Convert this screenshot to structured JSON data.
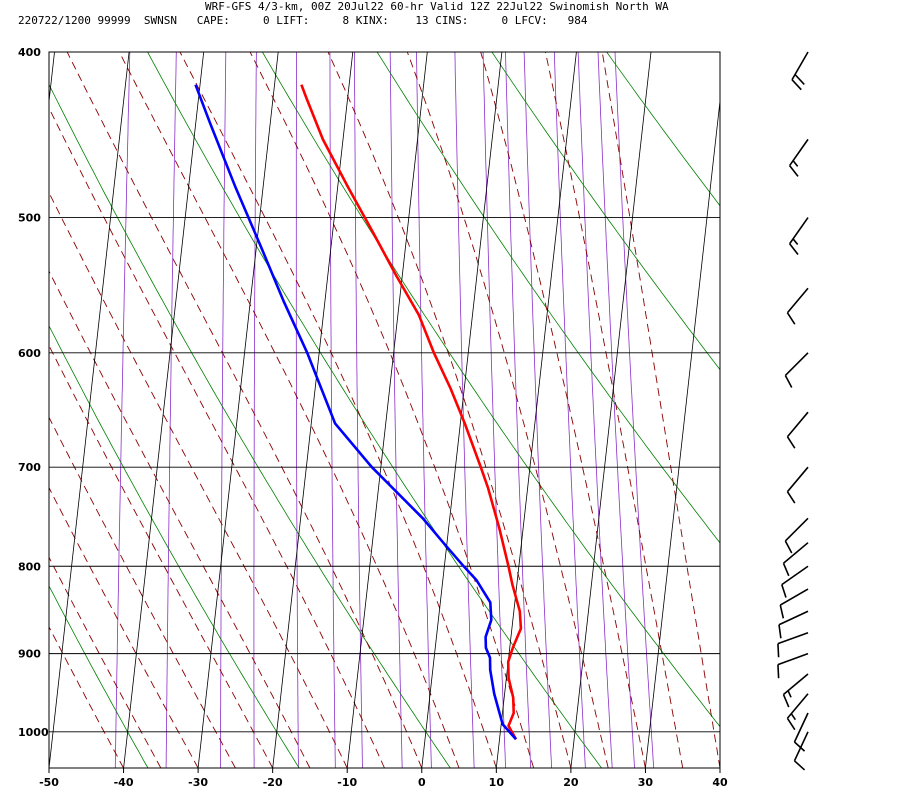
{
  "header": {
    "title": "WRF-GFS 4/3-km, 00Z 20Jul22 60-hr Valid 12Z 22Jul22 Swinomish North WA",
    "subtitle": "220722/1200 99999  SWNSN   CAPE:     0 LIFT:     8 KINX:    13 CINS:     0 LFCV:   984"
  },
  "chart_data": {
    "type": "line",
    "title": "WRF-GFS 4/3-km, 00Z 20Jul22 60-hr Valid 12Z 22Jul22 Swinomish North WA",
    "xlabel": "",
    "ylabel": "",
    "x_scale": "skew-T temperature (C)",
    "y_scale": "log pressure (mb)",
    "xlim": [
      -50,
      40
    ],
    "ylim": [
      1050,
      400
    ],
    "x_ticks": [
      -50,
      -40,
      -30,
      -20,
      -10,
      0,
      10,
      20,
      30,
      40
    ],
    "x_tick_labels": [
      "-50",
      "-40",
      "-30",
      "-20",
      "-10",
      "0",
      "10",
      "20",
      "30",
      "40"
    ],
    "y_ticks": [
      400,
      500,
      600,
      700,
      800,
      900,
      1000
    ],
    "y_tick_labels": [
      "400",
      "500",
      "600",
      "700",
      "800",
      "900",
      "1000"
    ],
    "grid": true,
    "series": [
      {
        "color": "#ff0000",
        "points": [
          [
            1010,
            12.2
          ],
          [
            992,
            11.0
          ],
          [
            975,
            11.5
          ],
          [
            955,
            11.2
          ],
          [
            930,
            10.3
          ],
          [
            910,
            10.0
          ],
          [
            893,
            10.4
          ],
          [
            870,
            11.2
          ],
          [
            850,
            10.8
          ],
          [
            820,
            9.4
          ],
          [
            800,
            8.6
          ],
          [
            760,
            6.8
          ],
          [
            720,
            4.7
          ],
          [
            700,
            3.4
          ],
          [
            660,
            0.6
          ],
          [
            630,
            -1.8
          ],
          [
            600,
            -4.6
          ],
          [
            570,
            -7.2
          ],
          [
            540,
            -10.9
          ],
          [
            510,
            -14.6
          ],
          [
            480,
            -18.6
          ],
          [
            450,
            -22.7
          ],
          [
            425,
            -25.6
          ],
          [
            418,
            -26.4
          ]
        ]
      },
      {
        "color": "#0000ff",
        "points": [
          [
            1010,
            12.2
          ],
          [
            990,
            10.2
          ],
          [
            975,
            9.6
          ],
          [
            950,
            8.6
          ],
          [
            920,
            7.7
          ],
          [
            905,
            7.5
          ],
          [
            893,
            6.8
          ],
          [
            880,
            6.6
          ],
          [
            860,
            7.1
          ],
          [
            840,
            6.7
          ],
          [
            815,
            4.5
          ],
          [
            800,
            2.6
          ],
          [
            775,
            -0.5
          ],
          [
            750,
            -3.6
          ],
          [
            700,
            -11.2
          ],
          [
            660,
            -16.8
          ],
          [
            600,
            -21.6
          ],
          [
            560,
            -25.5
          ],
          [
            520,
            -29.4
          ],
          [
            480,
            -33.7
          ],
          [
            440,
            -38.1
          ],
          [
            418,
            -40.6
          ]
        ]
      }
    ],
    "wind_barbs": [
      {
        "p": 1000,
        "dir": 205,
        "speed": 10
      },
      {
        "p": 975,
        "dir": 205,
        "speed": 10
      },
      {
        "p": 950,
        "dir": 220,
        "speed": 15
      },
      {
        "p": 925,
        "dir": 230,
        "speed": 15
      },
      {
        "p": 900,
        "dir": 250,
        "speed": 10
      },
      {
        "p": 875,
        "dir": 250,
        "speed": 10
      },
      {
        "p": 850,
        "dir": 245,
        "speed": 10
      },
      {
        "p": 825,
        "dir": 240,
        "speed": 10
      },
      {
        "p": 800,
        "dir": 235,
        "speed": 10
      },
      {
        "p": 775,
        "dir": 230,
        "speed": 10
      },
      {
        "p": 750,
        "dir": 225,
        "speed": 10
      },
      {
        "p": 700,
        "dir": 220,
        "speed": 10
      },
      {
        "p": 650,
        "dir": 220,
        "speed": 10
      },
      {
        "p": 600,
        "dir": 225,
        "speed": 10
      },
      {
        "p": 550,
        "dir": 220,
        "speed": 10
      },
      {
        "p": 500,
        "dir": 215,
        "speed": 15
      },
      {
        "p": 450,
        "dir": 215,
        "speed": 15
      },
      {
        "p": 400,
        "dir": 210,
        "speed": 20
      }
    ],
    "colors": {
      "isotherm": "#000000",
      "dry_adiabat": "#008000",
      "moist_adiabat": "#8b0000",
      "mixing_ratio": "#8b2fc9",
      "wind_barb": "#000000"
    }
  }
}
